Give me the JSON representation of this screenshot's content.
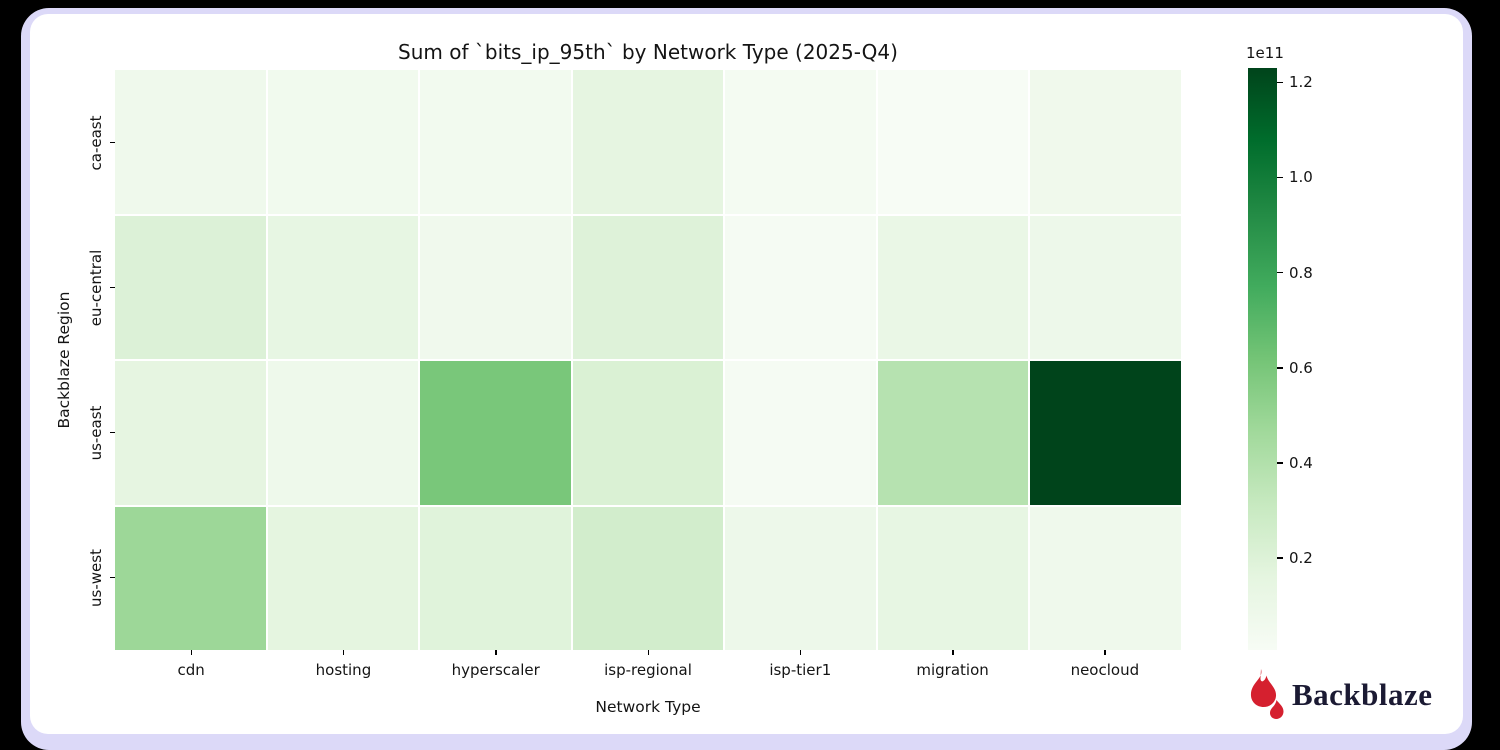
{
  "frame": {
    "outer_bg": "#000000",
    "border_color": "#dcd9f8",
    "card_bg": "#ffffff"
  },
  "chart_data": {
    "type": "heatmap",
    "title": "Sum of `bits_ip_95th` by Network Type (2025-Q4)",
    "xlabel": "Network Type",
    "ylabel": "Backblaze Region",
    "columns": [
      "cdn",
      "hosting",
      "hyperscaler",
      "isp-regional",
      "isp-tier1",
      "migration",
      "neocloud"
    ],
    "rows": [
      "ca-east",
      "eu-central",
      "us-east",
      "us-west"
    ],
    "values": [
      [
        7500000000.0,
        6000000000.0,
        5000000000.0,
        15000000000.0,
        3000000000.0,
        700000000.0,
        7000000000.0
      ],
      [
        20500000000.0,
        14000000000.0,
        6500000000.0,
        19500000000.0,
        2500000000.0,
        11500000000.0,
        9000000000.0
      ],
      [
        15000000000.0,
        8000000000.0,
        60000000000.0,
        21500000000.0,
        2500000000.0,
        38000000000.0,
        123000000000.0
      ],
      [
        48000000000.0,
        16000000000.0,
        18500000000.0,
        25600000000.0,
        9000000000.0,
        14000000000.0,
        7500000000.0
      ]
    ],
    "vmin": 700000000.0,
    "vmax": 123000000000.0,
    "grid_line_color": "#ffffff",
    "colormap": "Greens",
    "colormap_anchors": [
      "#f7fcf5",
      "#e5f5e0",
      "#c7e9c0",
      "#a1d99b",
      "#74c476",
      "#41ab5d",
      "#238b45",
      "#006d2c",
      "#00441b"
    ],
    "colorbar": {
      "scale_label": "1e11",
      "tick_values": [
        1.2,
        1.0,
        0.8,
        0.6,
        0.4,
        0.2
      ],
      "tick_labels": [
        "1.2",
        "1.0",
        "0.8",
        "0.6",
        "0.4",
        "0.2"
      ],
      "position": "right"
    },
    "legend": null,
    "grid": false
  },
  "branding": {
    "logo_text": "Backblaze",
    "flame_color": "#d5202f",
    "text_color": "#1b1a33"
  }
}
